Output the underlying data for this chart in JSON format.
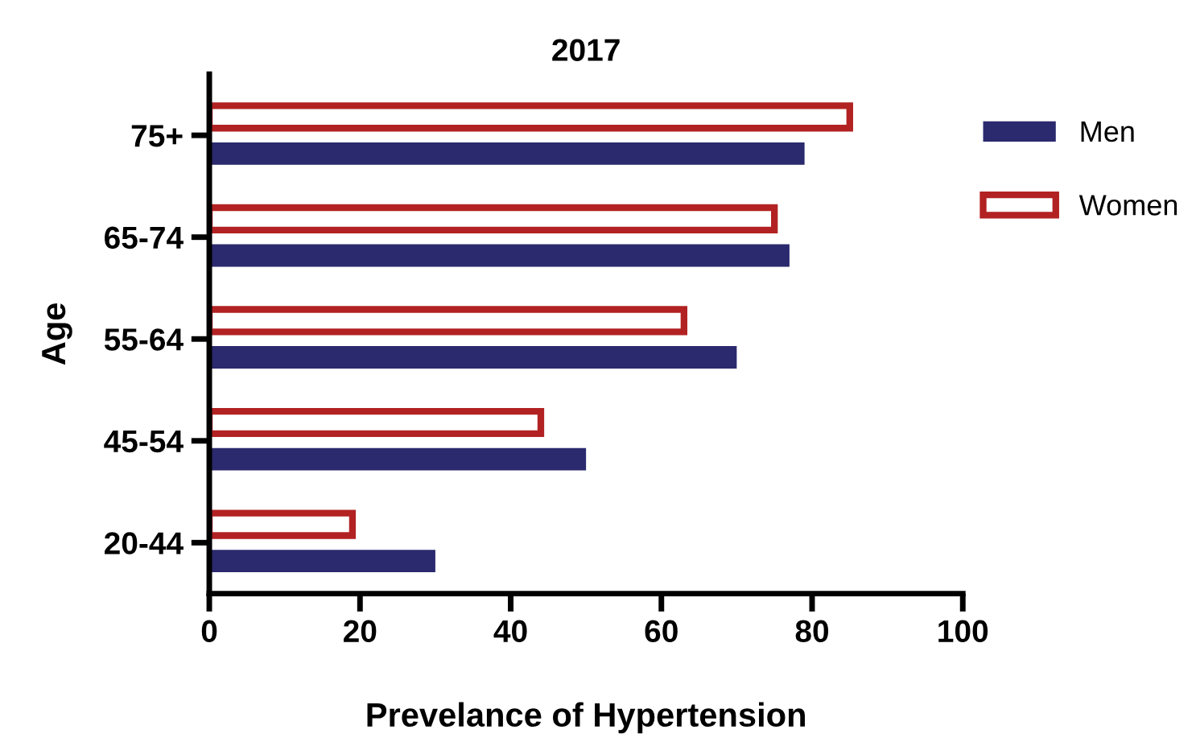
{
  "chart_data": {
    "type": "bar",
    "orientation": "horizontal",
    "title": "2017",
    "xlabel": "Prevelance of Hypertension",
    "ylabel": "Age",
    "categories": [
      "75+",
      "65-74",
      "55-64",
      "45-54",
      "20-44"
    ],
    "series": [
      {
        "name": "Men",
        "color": "#2b2a6e",
        "values": [
          79,
          77,
          70,
          50,
          30
        ]
      },
      {
        "name": "Women",
        "color": "#b22222",
        "values": [
          85,
          75,
          63,
          44,
          19
        ]
      }
    ],
    "xlim": [
      0,
      100
    ],
    "xticks": [
      0,
      20,
      40,
      60,
      80,
      100
    ],
    "grid": false,
    "legend": "top right"
  }
}
